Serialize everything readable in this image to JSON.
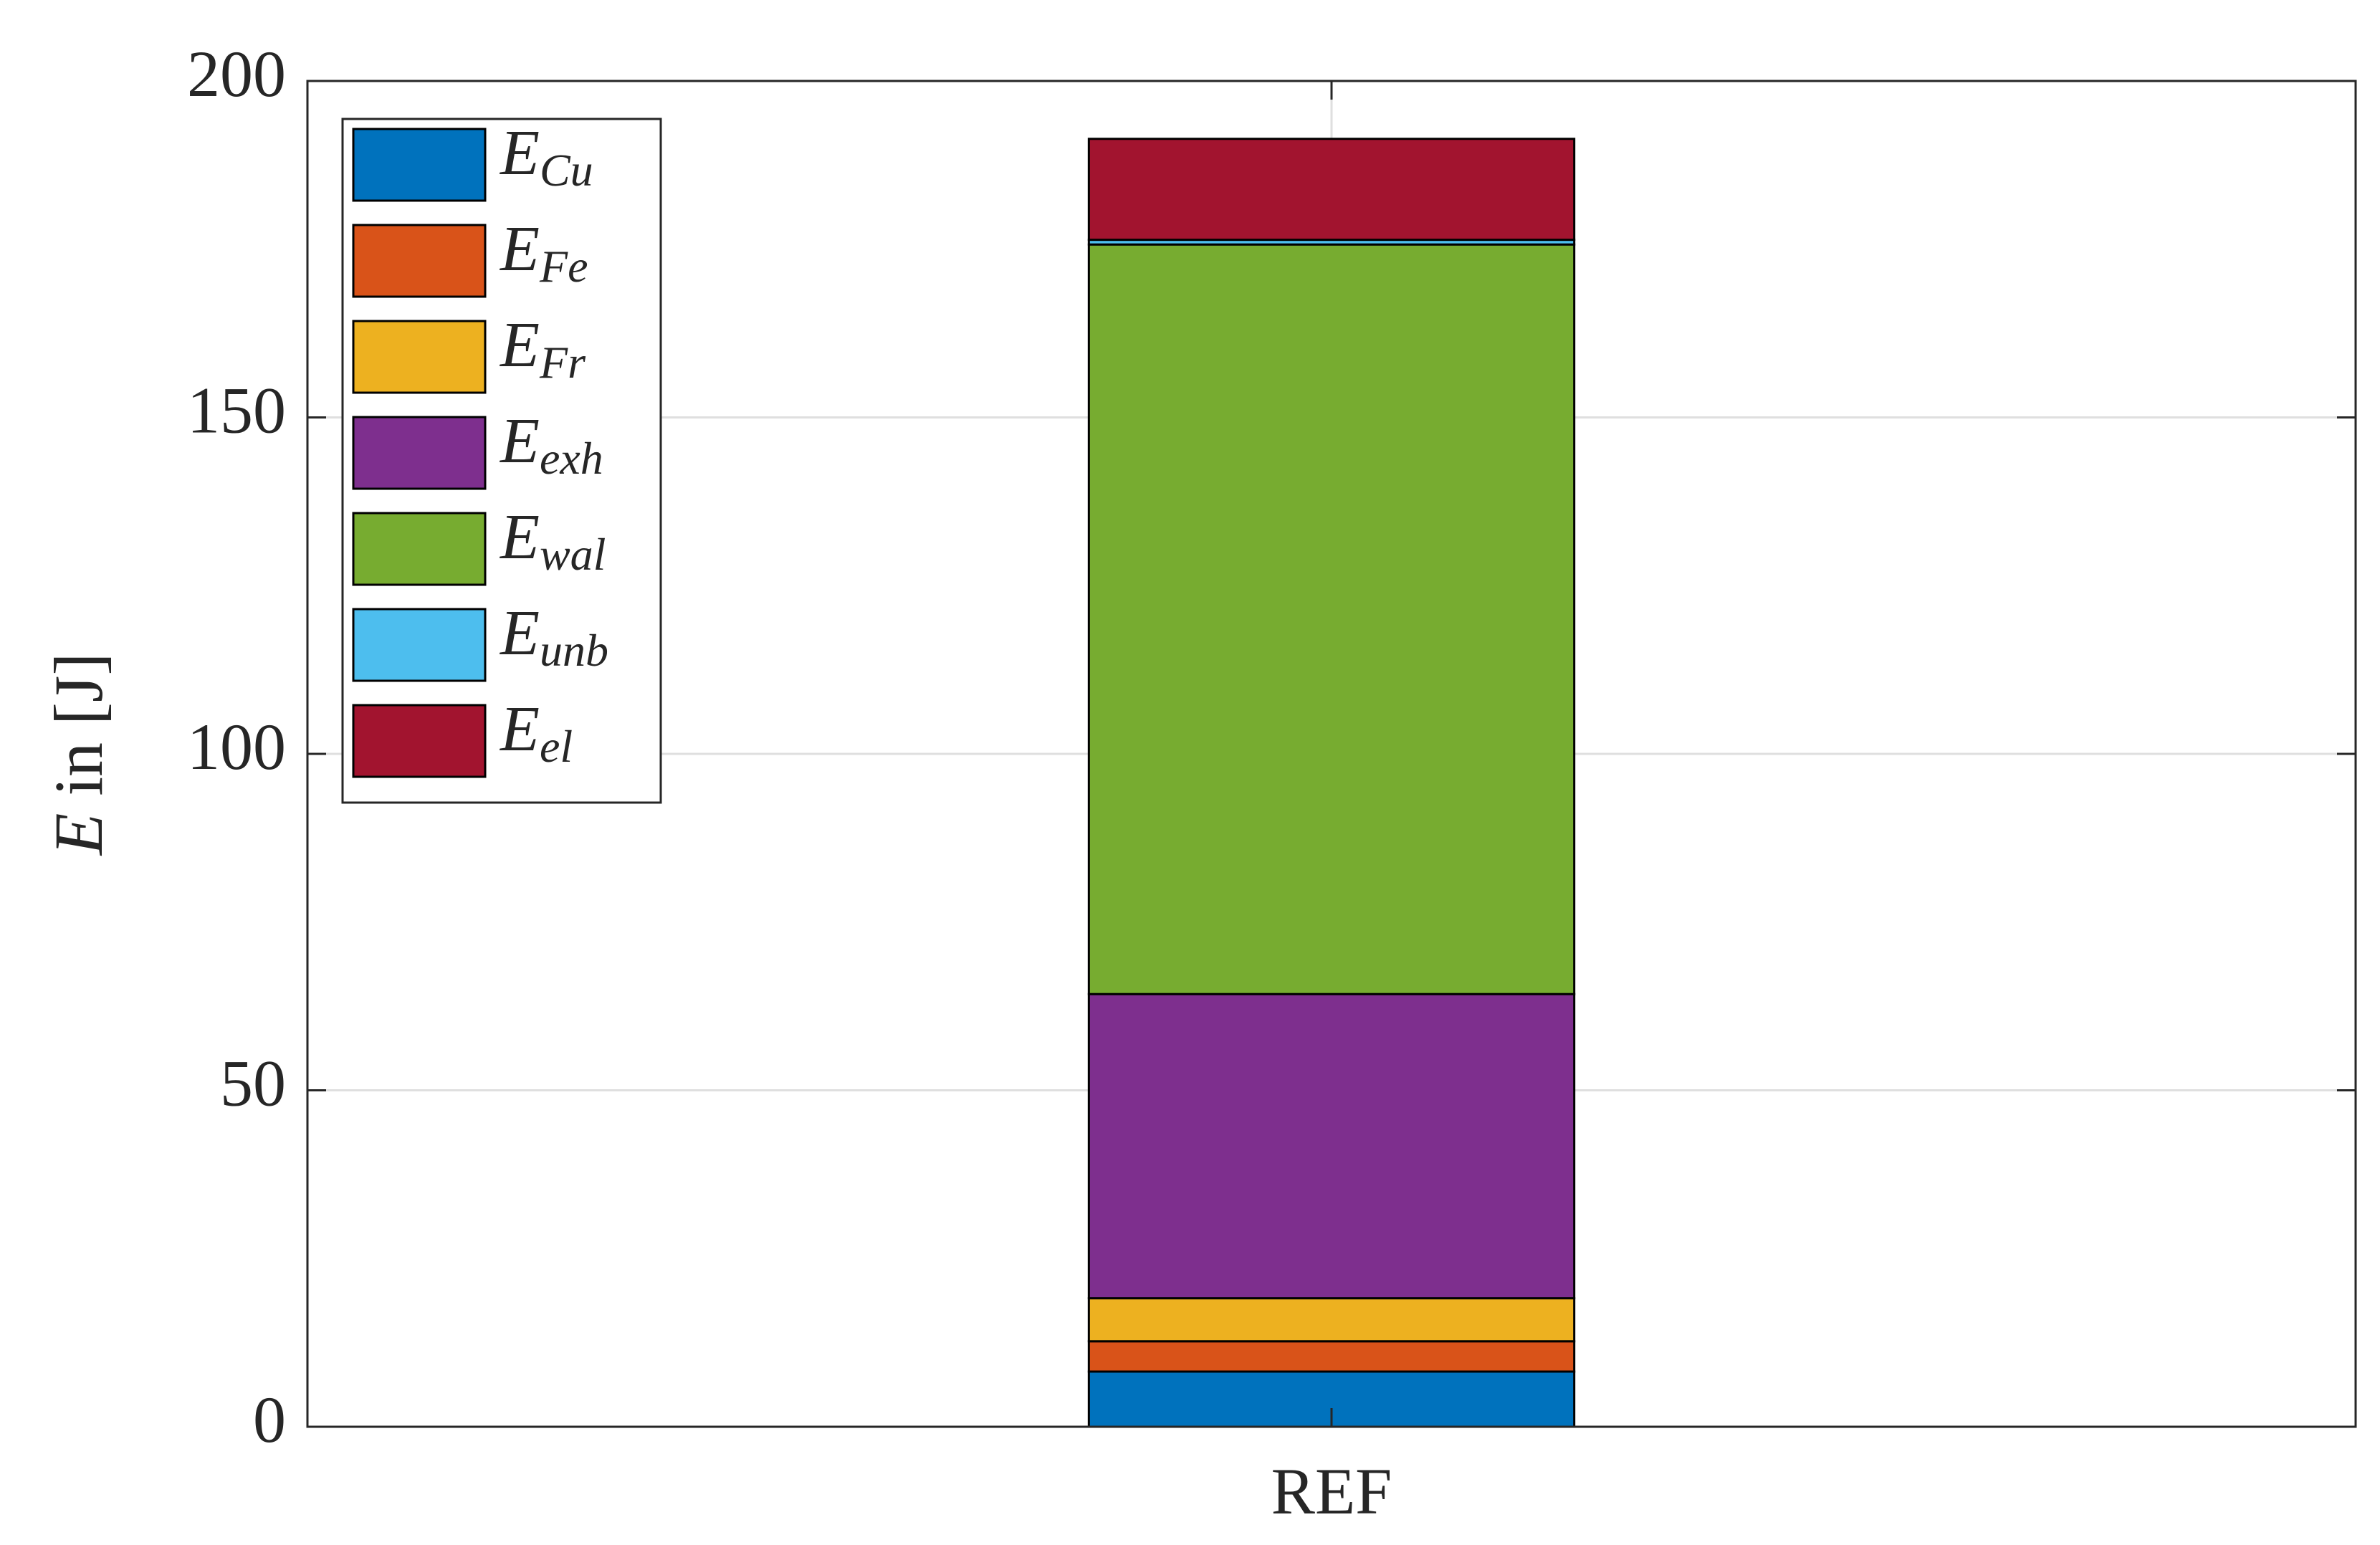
{
  "chart_data": {
    "type": "stacked-bar",
    "categories": [
      "REF"
    ],
    "y_label": "E in [J]",
    "series": [
      {
        "name": "E_Cu",
        "color": "#0072bd",
        "values": [
          8.2
        ]
      },
      {
        "name": "E_Fe",
        "color": "#d95319",
        "values": [
          4.5
        ]
      },
      {
        "name": "E_Fr",
        "color": "#edb120",
        "values": [
          6.4
        ]
      },
      {
        "name": "E_exh",
        "color": "#7e2f8e",
        "values": [
          45.2
        ]
      },
      {
        "name": "E_wal",
        "color": "#77ac30",
        "values": [
          111.4
        ]
      },
      {
        "name": "E_unb",
        "color": "#4dbeee",
        "values": [
          0.7
        ]
      },
      {
        "name": "E_el",
        "color": "#a2142f",
        "values": [
          15
        ]
      }
    ],
    "ylim": [
      0,
      200
    ],
    "yticks": [
      0,
      50,
      100,
      150,
      200
    ],
    "grid": true,
    "legend": "upper-left"
  }
}
